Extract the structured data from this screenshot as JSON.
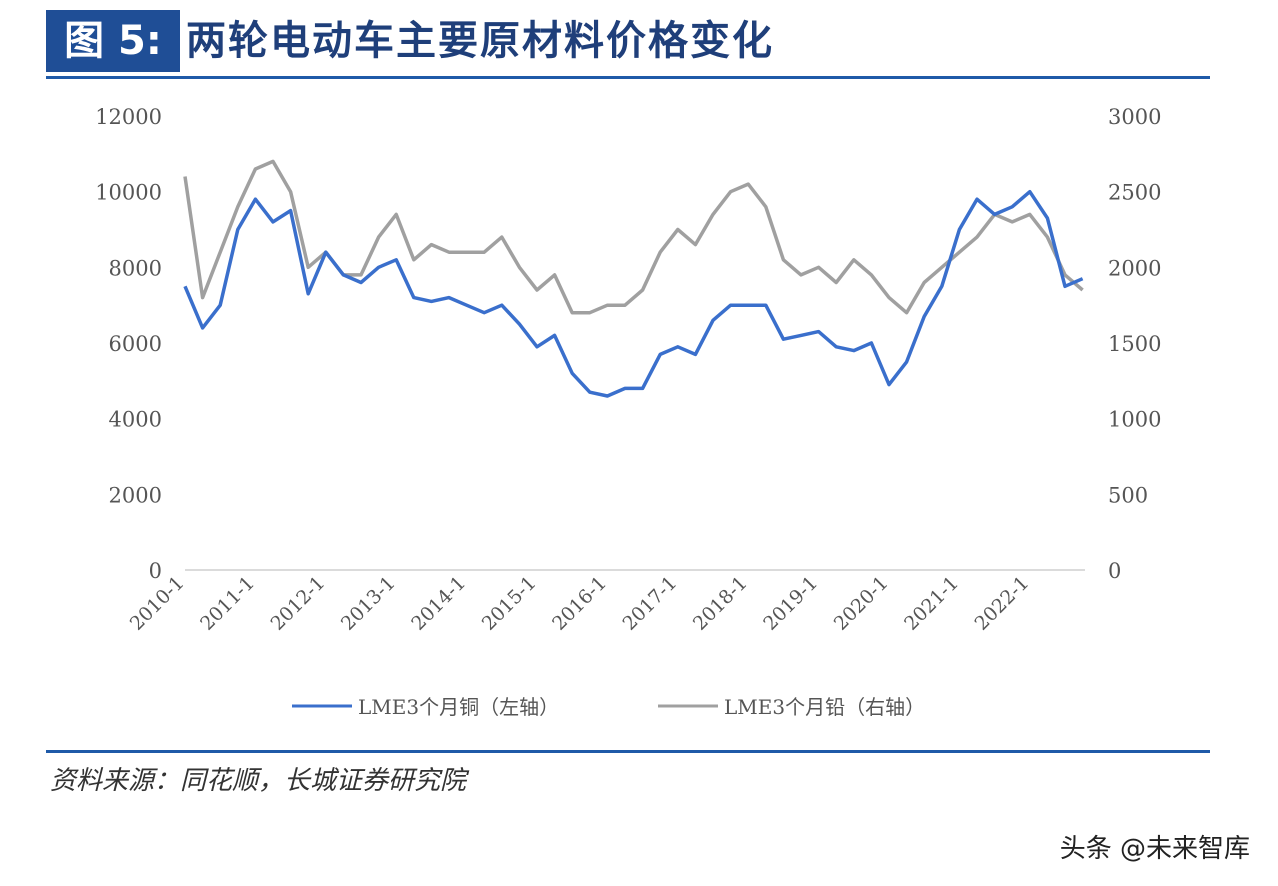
{
  "header": {
    "figure_label": "图 5:",
    "title": "两轮电动车主要原材料价格变化"
  },
  "source": "资料来源：同花顺，长城证券研究院",
  "watermark": "头条 @未来智库",
  "colors": {
    "copper": "#3a6fcc",
    "lead": "#a0a0a0",
    "accent": "#1f4e96"
  },
  "chart_data": {
    "type": "line",
    "title": "两轮电动车主要原材料价格变化",
    "x_ticks": [
      "2010-1",
      "2011-1",
      "2012-1",
      "2013-1",
      "2014-1",
      "2015-1",
      "2016-1",
      "2017-1",
      "2018-1",
      "2019-1",
      "2020-1",
      "2021-1",
      "2022-1"
    ],
    "x_start": "2010-Q1",
    "x_step": "quarter",
    "left_axis": {
      "ylim": [
        0,
        12000
      ],
      "ticks": [
        "0",
        "2000",
        "4000",
        "6000",
        "8000",
        "10000",
        "12000"
      ]
    },
    "right_axis": {
      "ylim": [
        0,
        3000
      ],
      "ticks": [
        "0",
        "500",
        "1000",
        "1500",
        "2000",
        "2500",
        "3000"
      ]
    },
    "legend_position": "bottom",
    "series": [
      {
        "name": "LME3个月铜（左轴）",
        "axis": "left",
        "values": [
          7500,
          6400,
          7000,
          9000,
          9800,
          9200,
          9500,
          7300,
          8400,
          7800,
          7600,
          8000,
          8200,
          7200,
          7100,
          7200,
          7000,
          6800,
          7000,
          6500,
          5900,
          6200,
          5200,
          4700,
          4600,
          4800,
          4800,
          5700,
          5900,
          5700,
          6600,
          7000,
          7000,
          7000,
          6100,
          6200,
          6300,
          5900,
          5800,
          6000,
          4900,
          5500,
          6700,
          7500,
          9000,
          9800,
          9400,
          9600,
          10000,
          9300,
          7500,
          7700
        ]
      },
      {
        "name": "LME3个月铅（右轴）",
        "axis": "right",
        "values": [
          2600,
          1800,
          2100,
          2400,
          2650,
          2700,
          2500,
          2000,
          2100,
          1950,
          1950,
          2200,
          2350,
          2050,
          2150,
          2100,
          2100,
          2100,
          2200,
          2000,
          1850,
          1950,
          1700,
          1700,
          1750,
          1750,
          1850,
          2100,
          2250,
          2150,
          2350,
          2500,
          2550,
          2400,
          2050,
          1950,
          2000,
          1900,
          2050,
          1950,
          1800,
          1700,
          1900,
          2000,
          2100,
          2200,
          2350,
          2300,
          2350,
          2200,
          1950,
          1850
        ]
      }
    ]
  }
}
